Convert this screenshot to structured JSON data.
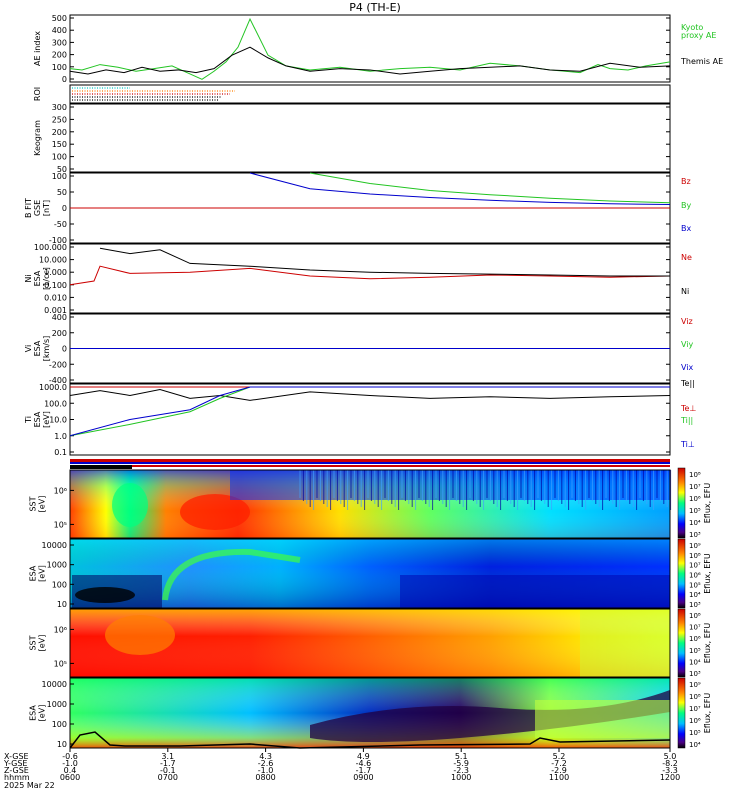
{
  "title": "P4 (TH-E)",
  "colors": {
    "black": "#000000",
    "green": "#22c422",
    "red": "#cc0000",
    "blue": "#0000cc",
    "cyan": "#00c8c8",
    "orange": "#ff7f00"
  },
  "chart_data": [
    {
      "type": "line",
      "ylabel": "AE index",
      "yticks": [
        "500",
        "400",
        "300",
        "200",
        "100",
        "0"
      ],
      "ylim": [
        0,
        500
      ],
      "series": [
        {
          "name": "Kyoto proxy AE",
          "color": "#22c422",
          "x": [
            0,
            0.02,
            0.05,
            0.08,
            0.11,
            0.14,
            0.17,
            0.2,
            0.22,
            0.24,
            0.26,
            0.28,
            0.3,
            0.33,
            0.36,
            0.4,
            0.45,
            0.5,
            0.55,
            0.6,
            0.65,
            0.7,
            0.75,
            0.8,
            0.85,
            0.88,
            0.9,
            0.93,
            0.96,
            1
          ],
          "y": [
            100,
            90,
            130,
            110,
            80,
            100,
            120,
            60,
            20,
            80,
            150,
            260,
            470,
            200,
            120,
            90,
            110,
            80,
            100,
            110,
            90,
            140,
            120,
            90,
            70,
            130,
            100,
            90,
            120,
            150
          ]
        },
        {
          "name": "Themis AE",
          "color": "#000000",
          "x": [
            0,
            0.03,
            0.06,
            0.09,
            0.12,
            0.15,
            0.18,
            0.21,
            0.24,
            0.27,
            0.3,
            0.33,
            0.36,
            0.4,
            0.45,
            0.5,
            0.55,
            0.6,
            0.65,
            0.7,
            0.75,
            0.8,
            0.85,
            0.9,
            0.95,
            1
          ],
          "y": [
            80,
            60,
            90,
            70,
            110,
            80,
            90,
            70,
            100,
            200,
            260,
            180,
            120,
            80,
            100,
            90,
            60,
            80,
            100,
            110,
            120,
            90,
            80,
            140,
            110,
            120
          ]
        }
      ],
      "legend": [
        "Kyoto",
        "proxy AE",
        "Themis AE"
      ]
    },
    {
      "type": "line",
      "ylabel": "ROI"
    },
    {
      "type": "line",
      "ylabel": "Keogram",
      "yticks": [
        "300",
        "250",
        "200",
        "150",
        "100",
        "50"
      ],
      "ylim": [
        0,
        330
      ]
    },
    {
      "type": "line",
      "ylabel": [
        "B FIT",
        "GSE",
        "[nT]"
      ],
      "yticks": [
        "100",
        "50",
        "0",
        "-50",
        "-100"
      ],
      "ylim": [
        -100,
        100
      ],
      "series": [
        {
          "name": "Bz",
          "color": "#cc0000",
          "x": [
            0,
            1
          ],
          "y": [
            0,
            0
          ]
        },
        {
          "name": "By",
          "color": "#22c422",
          "x": [
            0.4,
            0.5,
            0.6,
            0.7,
            0.8,
            0.9,
            1
          ],
          "y": [
            100,
            70,
            50,
            38,
            28,
            20,
            15
          ]
        },
        {
          "name": "Bx",
          "color": "#0000cc",
          "x": [
            0.3,
            0.4,
            0.5,
            0.6,
            0.7,
            0.8,
            0.9,
            1
          ],
          "y": [
            100,
            55,
            40,
            30,
            22,
            16,
            12,
            10
          ]
        }
      ]
    },
    {
      "type": "line",
      "ylabel": [
        "Ni",
        "ESA",
        "[1/cc]"
      ],
      "yticks": [
        "100.000",
        "10.000",
        "1.000",
        "0.100",
        "0.010",
        "0.001"
      ],
      "ylog": true,
      "series": [
        {
          "name": "Ne",
          "color": "#cc0000",
          "x": [
            0,
            0.04,
            0.05,
            0.1,
            0.2,
            0.3,
            0.4,
            0.5,
            0.6,
            0.7,
            0.8,
            0.9,
            1
          ],
          "y": [
            0.1,
            0.2,
            3,
            0.8,
            1,
            2,
            0.5,
            0.3,
            0.4,
            0.6,
            0.5,
            0.4,
            0.5
          ]
        },
        {
          "name": "Ni",
          "color": "#000000",
          "x": [
            0.05,
            0.1,
            0.15,
            0.2,
            0.3,
            0.4,
            0.5,
            0.6,
            0.7,
            0.8,
            0.9,
            1
          ],
          "y": [
            80,
            30,
            60,
            5,
            3,
            1.5,
            1,
            0.8,
            0.7,
            0.6,
            0.5,
            0.5
          ]
        }
      ]
    },
    {
      "type": "line",
      "ylabel": [
        "Vi",
        "ESA",
        "[km/s]"
      ],
      "yticks": [
        "400",
        "200",
        "0",
        "-200",
        "-400"
      ],
      "ylim": [
        -500,
        500
      ],
      "series": [
        {
          "name": "Viz",
          "color": "#cc0000",
          "x": [
            0,
            1
          ],
          "y": [
            0,
            0
          ]
        },
        {
          "name": "Viy",
          "color": "#22c422",
          "x": [
            0,
            1
          ],
          "y": [
            0,
            0
          ]
        },
        {
          "name": "Vix",
          "color": "#0000cc",
          "x": [
            0,
            1
          ],
          "y": [
            0,
            0
          ]
        }
      ]
    },
    {
      "type": "line",
      "ylabel": [
        "Ti",
        "ESA",
        "[eV]"
      ],
      "yticks": [
        "1000.0",
        "100.0",
        "10.0",
        "1.0",
        "0.1"
      ],
      "ylog": true,
      "series": [
        {
          "name": "Te||",
          "color": "#000000",
          "x": [
            0,
            0.05,
            0.1,
            0.15,
            0.2,
            0.25,
            0.3,
            0.4,
            0.5,
            0.6,
            0.7,
            0.8,
            0.9,
            1
          ],
          "y": [
            300,
            600,
            300,
            700,
            200,
            300,
            150,
            500,
            300,
            200,
            250,
            200,
            250,
            300
          ]
        },
        {
          "name": "Te⊥",
          "color": "#cc0000",
          "x": [
            0,
            1
          ],
          "y": [
            1000,
            1000
          ]
        },
        {
          "name": "Ti||",
          "color": "#22c422",
          "x": [
            0,
            0.1,
            0.2,
            0.25,
            0.3,
            0.4,
            0.5,
            0.6,
            0.7,
            0.8,
            0.9,
            1
          ],
          "y": [
            1,
            5,
            30,
            200,
            1500,
            1500,
            1300,
            1500,
            1400,
            1300,
            1500,
            1400
          ]
        },
        {
          "name": "Ti⊥",
          "color": "#0000cc",
          "x": [
            0,
            0.1,
            0.2,
            0.25,
            0.3,
            0.4,
            0.5,
            0.6,
            0.7,
            0.8,
            0.9,
            1
          ],
          "y": [
            1,
            10,
            40,
            300,
            1800,
            1700,
            1500,
            1700,
            1600,
            1500,
            1700,
            1600
          ]
        }
      ]
    },
    {
      "type": "heatmap",
      "ylabel": [
        "SST",
        "[eV]"
      ],
      "yticks": [
        "10⁶",
        "10⁵"
      ],
      "colorbar": {
        "label": "Eflux, EFU",
        "ticks": [
          "10⁸",
          "10⁷",
          "10⁶",
          "10⁵",
          "10⁴",
          "10³"
        ]
      }
    },
    {
      "type": "heatmap",
      "ylabel": [
        "ESA",
        "[eV]"
      ],
      "yticks": [
        "10000",
        "1000",
        "100",
        "10"
      ],
      "colorbar": {
        "label": "Eflux, EFU",
        "ticks": [
          "10⁹",
          "10⁸",
          "10⁷",
          "10⁶",
          "10⁵",
          "10⁴",
          "10³"
        ]
      }
    },
    {
      "type": "heatmap",
      "ylabel": [
        "SST",
        "[eV]"
      ],
      "yticks": [
        "10⁶",
        "10⁵"
      ],
      "colorbar": {
        "label": "Eflux, EFU",
        "ticks": [
          "10⁸",
          "10⁷",
          "10⁶",
          "10⁵",
          "10⁴",
          "10³"
        ]
      }
    },
    {
      "type": "heatmap",
      "ylabel": [
        "ESA",
        "[eV]"
      ],
      "yticks": [
        "10000",
        "1000",
        "100",
        "10"
      ],
      "colorbar": {
        "label": "Eflux, EFU",
        "ticks": [
          "10⁹",
          "10⁸",
          "10⁷",
          "10⁶",
          "10⁵",
          "10⁴"
        ]
      }
    }
  ],
  "xaxis": {
    "row_labels": [
      "X-GSE",
      "Y-GSE",
      "Z-GSE",
      "hhmm",
      "2025 Mar 22"
    ],
    "columns": [
      {
        "frac": 0.0,
        "x": "-0.6",
        "y": "-1.0",
        "z": "0.4",
        "t": "0600"
      },
      {
        "frac": 0.163,
        "x": "3.1",
        "y": "-1.7",
        "z": "-0.1",
        "t": "0700"
      },
      {
        "frac": 0.326,
        "x": "4.3",
        "y": "-2.6",
        "z": "-1.0",
        "t": "0800"
      },
      {
        "frac": 0.489,
        "x": "4.9",
        "y": "-4.6",
        "z": "-1.7",
        "t": "0900"
      },
      {
        "frac": 0.652,
        "x": "5.1",
        "y": "-5.9",
        "z": "-2.3",
        "t": "1000"
      },
      {
        "frac": 0.815,
        "x": "5.2",
        "y": "-7.2",
        "z": "-2.9",
        "t": "1100"
      },
      {
        "frac": 1.0,
        "x": "5.0",
        "y": "-8.2",
        "z": "-3.3",
        "t": "1200"
      }
    ]
  }
}
